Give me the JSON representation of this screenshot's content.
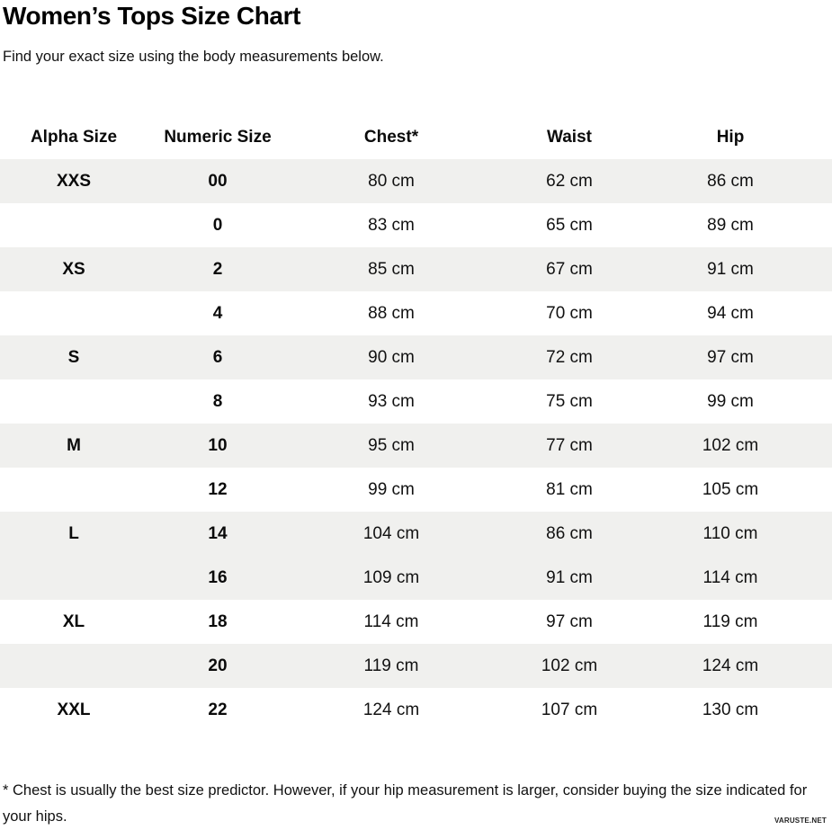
{
  "header": {
    "title": "Women’s Tops Size Chart",
    "subtitle": "Find your exact size using the body measurements below."
  },
  "chart_data": {
    "type": "table",
    "title": "Women’s Tops Size Chart",
    "unit": "cm",
    "columns": [
      "Alpha Size",
      "Numeric Size",
      "Chest*",
      "Waist",
      "Hip"
    ],
    "rows": [
      {
        "alpha": "XXS",
        "numeric": "00",
        "chest": "80 cm",
        "waist": "62 cm",
        "hip": "86 cm"
      },
      {
        "alpha": "",
        "numeric": "0",
        "chest": "83 cm",
        "waist": "65 cm",
        "hip": "89 cm"
      },
      {
        "alpha": "XS",
        "numeric": "2",
        "chest": "85 cm",
        "waist": "67 cm",
        "hip": "91 cm"
      },
      {
        "alpha": "",
        "numeric": "4",
        "chest": "88 cm",
        "waist": "70 cm",
        "hip": "94 cm"
      },
      {
        "alpha": "S",
        "numeric": "6",
        "chest": "90 cm",
        "waist": "72 cm",
        "hip": "97 cm"
      },
      {
        "alpha": "",
        "numeric": "8",
        "chest": "93 cm",
        "waist": "75 cm",
        "hip": "99 cm"
      },
      {
        "alpha": "M",
        "numeric": "10",
        "chest": "95 cm",
        "waist": "77 cm",
        "hip": "102 cm"
      },
      {
        "alpha": "",
        "numeric": "12",
        "chest": "99 cm",
        "waist": "81 cm",
        "hip": "105 cm"
      },
      {
        "alpha": "L",
        "numeric": "14",
        "chest": "104 cm",
        "waist": "86 cm",
        "hip": "110 cm"
      },
      {
        "alpha": "",
        "numeric": "16",
        "chest": "109 cm",
        "waist": "91 cm",
        "hip": "114 cm"
      },
      {
        "alpha": "XL",
        "numeric": "18",
        "chest": "114 cm",
        "waist": "97 cm",
        "hip": "119 cm"
      },
      {
        "alpha": "",
        "numeric": "20",
        "chest": "119 cm",
        "waist": "102 cm",
        "hip": "124 cm"
      },
      {
        "alpha": "XXL",
        "numeric": "22",
        "chest": "124 cm",
        "waist": "107 cm",
        "hip": "130 cm"
      }
    ],
    "shaded_row_indices": [
      0,
      2,
      4,
      6,
      8,
      9,
      11
    ]
  },
  "footer": {
    "footnote": "* Chest is usually the best size predictor. However, if your hip measurement is larger, consider buying the size indicated for your hips.",
    "watermark": "VARUSTE.NET"
  },
  "colors": {
    "shaded_row": "#f0f0ee",
    "text": "#111111",
    "title": "#000000"
  }
}
